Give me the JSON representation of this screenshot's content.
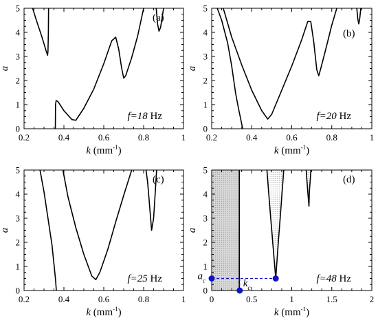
{
  "chart_data": [
    {
      "type": "line",
      "tag": "(a)",
      "xlim": [
        0.2,
        1.0
      ],
      "ylim": [
        0,
        5
      ],
      "xticks": [
        "0.2",
        "0.4",
        "0.6",
        "0.8",
        "1"
      ],
      "yticks": [
        "0",
        "1",
        "2",
        "3",
        "4",
        "5"
      ],
      "xlabel": {
        "var": "k",
        "unit": " (mm",
        "exp": "-1",
        "close": ")"
      },
      "ylabel": "a",
      "freq": {
        "prefix": "f=",
        "value": "18",
        "unit": " Hz"
      },
      "series": [
        {
          "points": [
            [
              0.243,
              5.0
            ],
            [
              0.26,
              4.55
            ],
            [
              0.29,
              3.8
            ],
            [
              0.31,
              3.25
            ],
            [
              0.318,
              3.05
            ],
            [
              0.32,
              3.2
            ],
            [
              0.322,
              4.0
            ],
            [
              0.323,
              5.0
            ]
          ]
        },
        {
          "points": [
            [
              0.357,
              0.0
            ],
            [
              0.358,
              1.0
            ],
            [
              0.361,
              1.17
            ],
            [
              0.37,
              1.13
            ],
            [
              0.4,
              0.75
            ],
            [
              0.44,
              0.38
            ],
            [
              0.46,
              0.35
            ],
            [
              0.5,
              0.85
            ],
            [
              0.55,
              1.65
            ],
            [
              0.6,
              2.7
            ],
            [
              0.64,
              3.65
            ],
            [
              0.66,
              3.8
            ],
            [
              0.675,
              3.3
            ],
            [
              0.69,
              2.5
            ],
            [
              0.7,
              2.1
            ],
            [
              0.71,
              2.2
            ],
            [
              0.74,
              2.95
            ],
            [
              0.77,
              3.85
            ],
            [
              0.8,
              5.0
            ]
          ]
        },
        {
          "points": [
            [
              0.863,
              5.0
            ],
            [
              0.87,
              4.35
            ],
            [
              0.877,
              4.05
            ],
            [
              0.885,
              4.2
            ],
            [
              0.9,
              5.0
            ]
          ]
        }
      ]
    },
    {
      "type": "line",
      "tag": "(b)",
      "xlim": [
        0.2,
        1.0
      ],
      "ylim": [
        0,
        5
      ],
      "xticks": [
        "0.2",
        "0.4",
        "0.6",
        "0.8",
        "1"
      ],
      "yticks": [
        "0",
        "1",
        "2",
        "3",
        "4",
        "5"
      ],
      "xlabel": {
        "var": "k",
        "unit": " (mm",
        "exp": "-1",
        "close": ")"
      },
      "ylabel": "a",
      "freq": {
        "prefix": "f=",
        "value": "20",
        "unit": " Hz"
      },
      "series": [
        {
          "points": [
            [
              0.228,
              5.0
            ],
            [
              0.25,
              4.5
            ],
            [
              0.28,
              3.55
            ],
            [
              0.3,
              2.6
            ],
            [
              0.32,
              1.45
            ],
            [
              0.335,
              0.8
            ],
            [
              0.345,
              0.4
            ],
            [
              0.355,
              0.0
            ]
          ]
        },
        {
          "points": [
            [
              0.258,
              5.0
            ],
            [
              0.3,
              3.8
            ],
            [
              0.35,
              2.65
            ],
            [
              0.4,
              1.6
            ],
            [
              0.45,
              0.75
            ],
            [
              0.48,
              0.4
            ],
            [
              0.5,
              0.6
            ],
            [
              0.55,
              1.6
            ],
            [
              0.6,
              2.6
            ],
            [
              0.65,
              3.7
            ],
            [
              0.68,
              4.45
            ],
            [
              0.695,
              4.45
            ],
            [
              0.71,
              3.6
            ],
            [
              0.725,
              2.45
            ],
            [
              0.735,
              2.2
            ],
            [
              0.745,
              2.5
            ],
            [
              0.77,
              3.3
            ],
            [
              0.8,
              4.3
            ],
            [
              0.825,
              5.0
            ]
          ]
        },
        {
          "points": [
            [
              0.925,
              5.0
            ],
            [
              0.93,
              4.55
            ],
            [
              0.935,
              4.35
            ],
            [
              0.94,
              4.6
            ],
            [
              0.945,
              5.0
            ]
          ]
        }
      ]
    },
    {
      "type": "line",
      "tag": "(c)",
      "xlim": [
        0.2,
        1.0
      ],
      "ylim": [
        0,
        5
      ],
      "xticks": [
        "0.2",
        "0.4",
        "0.6",
        "0.8",
        "1"
      ],
      "yticks": [
        "0",
        "1",
        "2",
        "3",
        "4",
        "5"
      ],
      "xlabel": {
        "var": "k",
        "unit": " (mm",
        "exp": "-1",
        "close": ")"
      },
      "ylabel": "a",
      "freq": {
        "prefix": "f=",
        "value": "25",
        "unit": " Hz"
      },
      "series": [
        {
          "points": [
            [
              0.28,
              5.0
            ],
            [
              0.3,
              4.1
            ],
            [
              0.32,
              3.0
            ],
            [
              0.34,
              1.9
            ],
            [
              0.35,
              1.1
            ],
            [
              0.358,
              0.45
            ],
            [
              0.362,
              0.0
            ]
          ]
        },
        {
          "points": [
            [
              0.395,
              5.0
            ],
            [
              0.42,
              3.9
            ],
            [
              0.46,
              2.6
            ],
            [
              0.5,
              1.5
            ],
            [
              0.54,
              0.6
            ],
            [
              0.56,
              0.45
            ],
            [
              0.58,
              0.75
            ],
            [
              0.62,
              1.7
            ],
            [
              0.66,
              2.85
            ],
            [
              0.7,
              3.95
            ],
            [
              0.74,
              5.0
            ]
          ]
        },
        {
          "points": [
            [
              0.812,
              5.0
            ],
            [
              0.82,
              4.5
            ],
            [
              0.83,
              3.5
            ],
            [
              0.84,
              2.5
            ],
            [
              0.85,
              3.0
            ],
            [
              0.86,
              4.3
            ],
            [
              0.865,
              5.0
            ]
          ]
        }
      ]
    },
    {
      "type": "line",
      "tag": "(d)",
      "xlim": [
        0,
        2
      ],
      "ylim": [
        0,
        5
      ],
      "xticks": [
        "0",
        "0.5",
        "1",
        "1.5",
        "2"
      ],
      "yticks": [
        "0",
        "1",
        "2",
        "3",
        "4",
        "5"
      ],
      "xlabel": {
        "var": "k",
        "unit": " (mm",
        "exp": "-1",
        "close": ")"
      },
      "ylabel": "a",
      "freq": {
        "prefix": "f=",
        "value": "48",
        "unit": " Hz"
      },
      "series": [
        {
          "points": [
            [
              0.345,
              5.0
            ],
            [
              0.345,
              0.0
            ]
          ]
        },
        {
          "points": [
            [
              0.69,
              5.0
            ],
            [
              0.73,
              3.3
            ],
            [
              0.77,
              1.7
            ],
            [
              0.8,
              0.5
            ]
          ]
        },
        {
          "points": [
            [
              0.8,
              0.5
            ],
            [
              0.83,
              1.9
            ],
            [
              0.86,
              3.2
            ],
            [
              0.9,
              5.0
            ]
          ]
        },
        {
          "points": [
            [
              1.18,
              5.0
            ],
            [
              1.2,
              4.1
            ],
            [
              1.215,
              3.5
            ],
            [
              1.22,
              4.1
            ],
            [
              1.24,
              5.0
            ]
          ]
        }
      ],
      "shaded_regions": [
        [
          [
            0,
            0
          ],
          [
            0,
            5
          ],
          [
            0.345,
            5
          ],
          [
            0.345,
            0
          ]
        ],
        [
          [
            0.69,
            5.0
          ],
          [
            0.73,
            3.3
          ],
          [
            0.77,
            1.7
          ],
          [
            0.8,
            0.5
          ],
          [
            0.83,
            1.9
          ],
          [
            0.86,
            3.2
          ],
          [
            0.9,
            5.0
          ]
        ],
        [
          [
            1.18,
            5.0
          ],
          [
            1.2,
            4.1
          ],
          [
            1.215,
            3.5
          ],
          [
            1.22,
            4.1
          ],
          [
            1.24,
            5.0
          ]
        ]
      ],
      "markers": [
        [
          0,
          0.5
        ],
        [
          0.35,
          0.0
        ],
        [
          0.8,
          0.5
        ]
      ],
      "marker_color": "#1010c8",
      "dashed_guides": [
        [
          [
            0,
            0.5
          ],
          [
            0.8,
            0.5
          ]
        ],
        [
          [
            0.35,
            0.5
          ],
          [
            0.35,
            0.0
          ]
        ]
      ],
      "annotations": [
        {
          "main": "a",
          "sub": "c",
          "anchor": [
            0,
            0.5
          ]
        },
        {
          "main": "k",
          "sub": "c",
          "anchor": [
            0.35,
            0.0
          ]
        }
      ]
    }
  ]
}
